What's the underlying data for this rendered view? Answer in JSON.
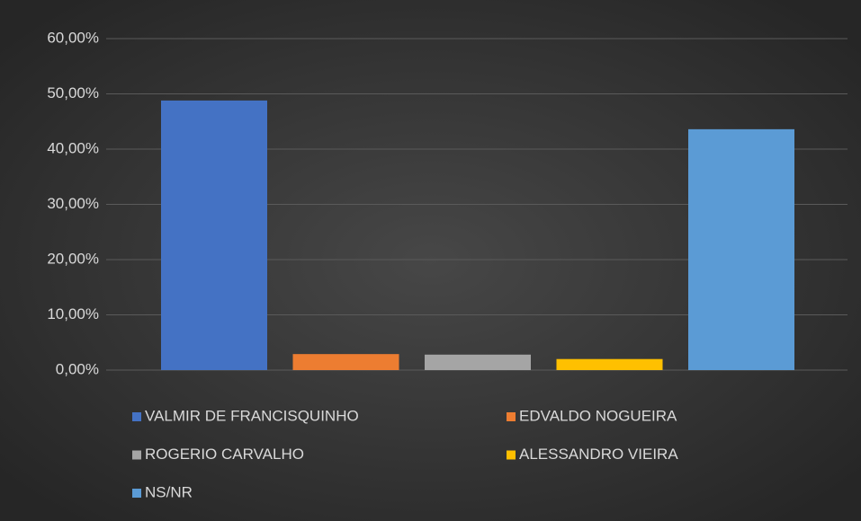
{
  "chart_data": {
    "type": "bar",
    "categories": [
      null
    ],
    "series": [
      {
        "name": "VALMIR DE FRANCISQUINHO",
        "color": "#4472c4",
        "values": [
          48.8
        ]
      },
      {
        "name": "EDVALDO NOGUEIRA",
        "color": "#ed7d31",
        "values": [
          2.9
        ]
      },
      {
        "name": "ROGERIO CARVALHO",
        "color": "#a5a5a5",
        "values": [
          2.8
        ]
      },
      {
        "name": "ALESSANDRO VIEIRA",
        "color": "#ffc000",
        "values": [
          2.0
        ]
      },
      {
        "name": "NS/NR",
        "color": "#5b9bd5",
        "values": [
          43.6
        ]
      }
    ],
    "ylim": [
      0,
      60
    ],
    "yticks": [
      {
        "value": 0,
        "label": "0,00%"
      },
      {
        "value": 10,
        "label": "10,00%"
      },
      {
        "value": 20,
        "label": "20,00%"
      },
      {
        "value": 30,
        "label": "30,00%"
      },
      {
        "value": 40,
        "label": "40,00%"
      },
      {
        "value": 50,
        "label": "50,00%"
      },
      {
        "value": 60,
        "label": "60,00%"
      }
    ],
    "grid": true,
    "legend": "bottom"
  }
}
